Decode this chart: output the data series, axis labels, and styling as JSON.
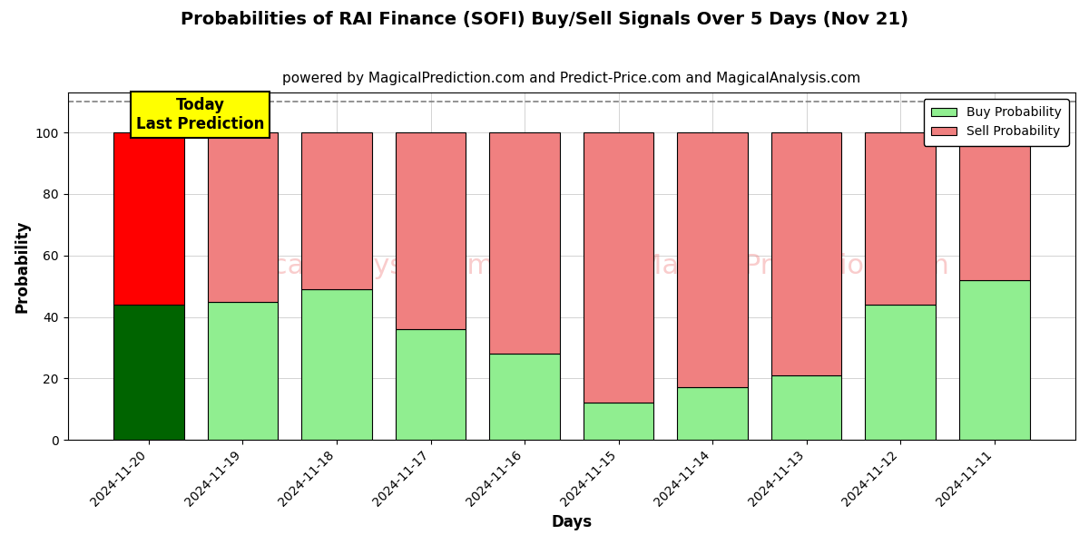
{
  "title": "Probabilities of RAI Finance (SOFI) Buy/Sell Signals Over 5 Days (Nov 21)",
  "subtitle": "powered by MagicalPrediction.com and Predict-Price.com and MagicalAnalysis.com",
  "xlabel": "Days",
  "ylabel": "Probability",
  "dates": [
    "2024-11-20",
    "2024-11-19",
    "2024-11-18",
    "2024-11-17",
    "2024-11-16",
    "2024-11-15",
    "2024-11-14",
    "2024-11-13",
    "2024-11-12",
    "2024-11-11"
  ],
  "buy_values": [
    44,
    45,
    49,
    36,
    28,
    12,
    17,
    21,
    44,
    52
  ],
  "sell_values": [
    56,
    55,
    51,
    64,
    72,
    88,
    83,
    79,
    56,
    48
  ],
  "today_buy_color": "#006400",
  "today_sell_color": "#FF0000",
  "buy_color": "#90EE90",
  "sell_color": "#F08080",
  "today_annotation": "Today\nLast Prediction",
  "today_annotation_bg": "#FFFF00",
  "ylim": [
    0,
    113
  ],
  "dashed_line_y": 110,
  "legend_buy_label": "Buy Probability",
  "legend_sell_label": "Sell Probability",
  "bar_width": 0.75,
  "figsize": [
    12.0,
    6.0
  ],
  "dpi": 100,
  "title_fontsize": 14,
  "subtitle_fontsize": 11,
  "axis_label_fontsize": 12,
  "tick_fontsize": 10
}
